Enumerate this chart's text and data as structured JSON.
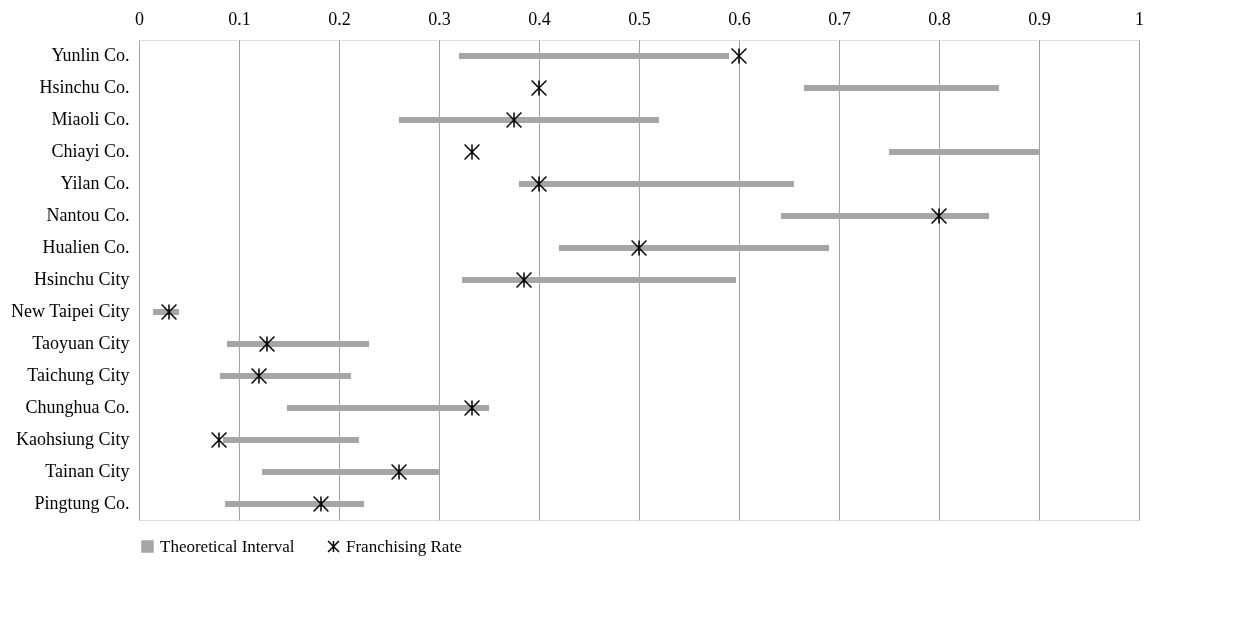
{
  "chart_data": {
    "type": "bar",
    "orientation": "horizontal",
    "categories": [
      "Yunlin Co.",
      "Hsinchu Co.",
      "Miaoli Co.",
      "Chiayi Co.",
      "Yilan Co.",
      "Nantou Co.",
      "Hualien Co.",
      "Hsinchu City",
      "New Taipei City",
      "Taoyuan City",
      "Taichung City",
      "Chunghua Co.",
      "Kaohsiung City",
      "Tainan City",
      "Pingtung Co."
    ],
    "series": [
      {
        "name": "Theoretical Interval",
        "color": "#a6a6a6",
        "base": [
          0.32,
          0.665,
          0.26,
          0.75,
          0.38,
          0.642,
          0.42,
          0.323,
          0.014,
          0.088,
          0.081,
          0.148,
          0.084,
          0.123,
          0.086
        ],
        "values": [
          0.27,
          0.195,
          0.26,
          0.15,
          0.275,
          0.208,
          0.27,
          0.274,
          0.026,
          0.142,
          0.131,
          0.202,
          0.136,
          0.177,
          0.139
        ]
      },
      {
        "name": "Franchising Rate",
        "type": "scatter",
        "marker": "cross",
        "color": "#000000",
        "values": [
          0.6,
          0.4,
          0.375,
          0.333,
          0.4,
          0.8,
          0.5,
          0.385,
          0.03,
          0.128,
          0.12,
          0.333,
          0.08,
          0.26,
          0.182
        ]
      }
    ],
    "xlim": [
      0,
      1
    ],
    "xticks": [
      0,
      0.1,
      0.2,
      0.3,
      0.4,
      0.5,
      0.6,
      0.7,
      0.8,
      0.9,
      1
    ],
    "grid": "x",
    "legend": "bottom"
  }
}
